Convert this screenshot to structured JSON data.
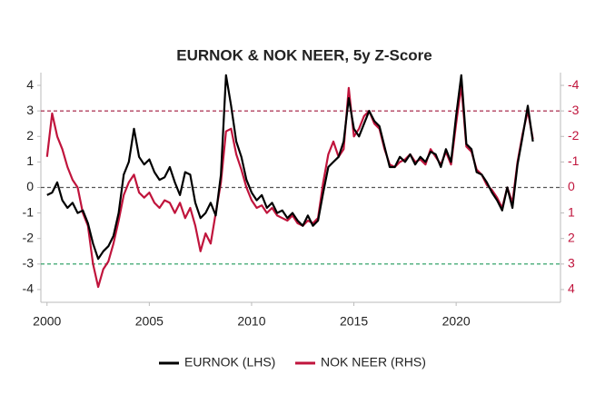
{
  "chart_data": {
    "type": "line",
    "title": "EURNOK & NOK NEER, 5y Z-Score",
    "x": [
      2000,
      2000.25,
      2000.5,
      2000.75,
      2001,
      2001.25,
      2001.5,
      2001.75,
      2002,
      2002.25,
      2002.5,
      2002.75,
      2003,
      2003.25,
      2003.5,
      2003.75,
      2004,
      2004.25,
      2004.5,
      2004.75,
      2005,
      2005.25,
      2005.5,
      2005.75,
      2006,
      2006.25,
      2006.5,
      2006.75,
      2007,
      2007.25,
      2007.5,
      2007.75,
      2008,
      2008.25,
      2008.5,
      2008.75,
      2009,
      2009.25,
      2009.5,
      2009.75,
      2010,
      2010.25,
      2010.5,
      2010.75,
      2011,
      2011.25,
      2011.5,
      2011.75,
      2012,
      2012.25,
      2012.5,
      2012.75,
      2013,
      2013.25,
      2013.5,
      2013.75,
      2014,
      2014.25,
      2014.5,
      2014.75,
      2015,
      2015.25,
      2015.5,
      2015.75,
      2016,
      2016.25,
      2016.5,
      2016.75,
      2017,
      2017.25,
      2017.5,
      2017.75,
      2018,
      2018.25,
      2018.5,
      2018.75,
      2019,
      2019.25,
      2019.5,
      2019.75,
      2020,
      2020.25,
      2020.5,
      2020.75,
      2021,
      2021.25,
      2021.5,
      2021.75,
      2022,
      2022.25,
      2022.5,
      2022.75,
      2023,
      2023.25,
      2023.5,
      2023.75
    ],
    "series": [
      {
        "name": "EURNOK (LHS)",
        "color": "#000000",
        "values": [
          -0.3,
          -0.2,
          0.2,
          -0.5,
          -0.8,
          -0.6,
          -1.0,
          -0.9,
          -1.4,
          -2.2,
          -2.8,
          -2.5,
          -2.3,
          -1.9,
          -1.0,
          0.5,
          1.0,
          2.3,
          1.2,
          0.9,
          1.1,
          0.6,
          0.3,
          0.4,
          0.8,
          0.2,
          -0.3,
          0.6,
          0.5,
          -0.6,
          -1.2,
          -1.0,
          -0.6,
          -1.1,
          0.5,
          4.4,
          3.2,
          1.8,
          1.2,
          0.3,
          -0.2,
          -0.5,
          -0.3,
          -0.8,
          -0.6,
          -1.0,
          -0.9,
          -1.2,
          -1.0,
          -1.3,
          -1.5,
          -1.1,
          -1.5,
          -1.3,
          -0.2,
          0.8,
          1.0,
          1.2,
          1.8,
          3.5,
          2.3,
          2.0,
          2.5,
          3.0,
          2.6,
          2.4,
          1.6,
          0.8,
          0.8,
          1.2,
          1.0,
          1.3,
          0.9,
          1.2,
          1.0,
          1.4,
          1.3,
          0.8,
          1.5,
          1.0,
          2.8,
          4.4,
          1.7,
          1.5,
          0.6,
          0.5,
          0.2,
          -0.2,
          -0.5,
          -0.9,
          0.0,
          -0.8,
          0.9,
          2.0,
          3.2,
          1.8
        ]
      },
      {
        "name": "NOK NEER (RHS)",
        "color": "#c0143c",
        "axis": "y2",
        "values": [
          -1.2,
          -2.9,
          -2.0,
          -1.5,
          -0.8,
          -0.3,
          0.0,
          1.0,
          1.5,
          3.0,
          3.9,
          3.2,
          2.9,
          2.2,
          1.3,
          0.3,
          -0.2,
          -0.5,
          0.2,
          0.4,
          0.2,
          0.6,
          0.8,
          0.5,
          0.6,
          1.0,
          0.6,
          1.2,
          0.8,
          1.5,
          2.5,
          1.8,
          2.2,
          1.0,
          -0.2,
          -2.2,
          -2.3,
          -1.3,
          -0.7,
          0.0,
          0.5,
          0.8,
          0.7,
          1.0,
          0.8,
          1.1,
          1.2,
          1.3,
          1.1,
          1.4,
          1.5,
          1.3,
          1.4,
          1.2,
          -0.2,
          -1.3,
          -1.8,
          -1.2,
          -1.5,
          -3.9,
          -2.0,
          -2.3,
          -2.8,
          -3.0,
          -2.5,
          -2.3,
          -1.5,
          -0.9,
          -0.8,
          -1.0,
          -1.1,
          -1.3,
          -1.0,
          -1.1,
          -0.9,
          -1.5,
          -1.2,
          -0.9,
          -1.4,
          -0.9,
          -2.5,
          -4.0,
          -1.6,
          -1.4,
          -0.7,
          -0.5,
          -0.1,
          0.1,
          0.4,
          0.8,
          0.0,
          0.6,
          -1.0,
          -2.1,
          -3.0,
          -1.9
        ]
      }
    ],
    "xlim": [
      1999.7,
      2025.1
    ],
    "xticks": [
      2000,
      2005,
      2010,
      2015,
      2020
    ],
    "ylim": [
      -4.5,
      4.5
    ],
    "yticks": [
      -4,
      -3,
      -2,
      -1,
      0,
      1,
      2,
      3,
      4
    ],
    "y2lim": [
      4.5,
      -4.5
    ],
    "y2ticks": [
      4,
      3,
      2,
      1,
      0,
      -1,
      -2,
      -3,
      -4
    ],
    "hlines": [
      {
        "value": 3,
        "color": "#a0163a"
      },
      {
        "value": 0,
        "color": "#555555"
      },
      {
        "value": -3,
        "color": "#1e9a5a"
      }
    ],
    "legend": "bottom"
  }
}
